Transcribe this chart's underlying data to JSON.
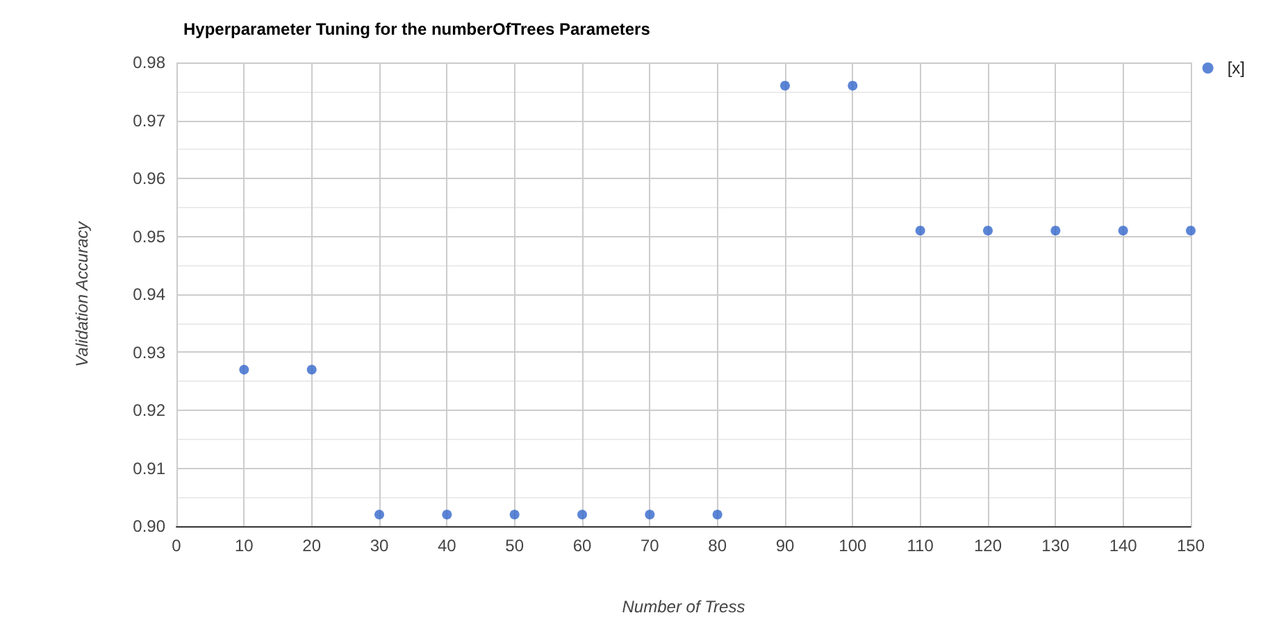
{
  "chart_data": {
    "type": "scatter",
    "title": "Hyperparameter Tuning for the numberOfTrees Parameters",
    "xlabel": "Number of Tress",
    "ylabel": "Validation Accuracy",
    "x": [
      10,
      20,
      30,
      40,
      50,
      60,
      70,
      80,
      90,
      100,
      110,
      120,
      130,
      140,
      150
    ],
    "series": [
      {
        "name": "[x]",
        "color": "#3366cc",
        "values": [
          0.927,
          0.927,
          0.902,
          0.902,
          0.902,
          0.902,
          0.902,
          0.902,
          0.976,
          0.976,
          0.951,
          0.951,
          0.951,
          0.951,
          0.951
        ]
      }
    ],
    "xlim": [
      0,
      150
    ],
    "xticks": [
      0,
      10,
      20,
      30,
      40,
      50,
      60,
      70,
      80,
      90,
      100,
      110,
      120,
      130,
      140,
      150
    ],
    "ylim": [
      0.9,
      0.98
    ],
    "yticks": [
      {
        "value": 0.9,
        "label": "0.90"
      },
      0.91,
      0.92,
      0.93,
      0.94,
      0.95,
      0.96,
      0.97,
      0.98
    ],
    "grid": true,
    "legend": "top right",
    "marker": "circle"
  }
}
